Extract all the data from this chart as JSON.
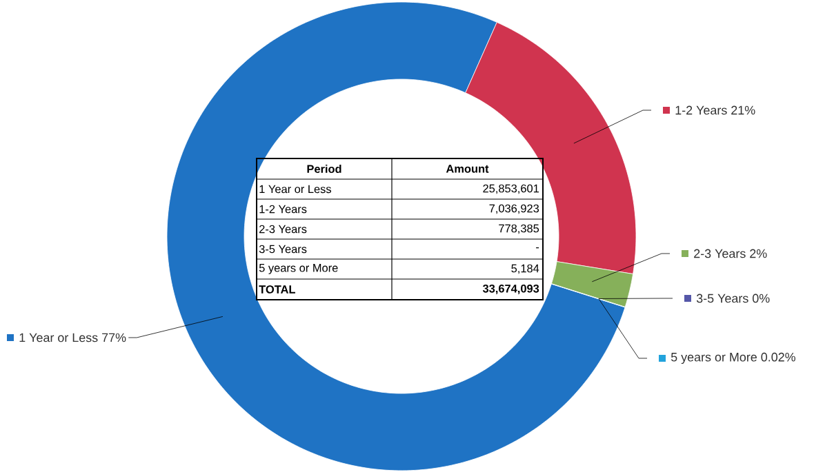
{
  "chart_data": {
    "type": "donut",
    "categories": [
      "1 Year or Less",
      "1-2 Years",
      "2-3 Years",
      "3-5 Years",
      "5 years or More"
    ],
    "values": [
      76.77,
      20.9,
      2.31,
      0,
      0.02
    ],
    "colors": [
      "#1f73c4",
      "#d0344f",
      "#86b05a",
      "#5557a8",
      "#22a3dc"
    ],
    "totals": [
      "33,674,093"
    ],
    "legend": "right",
    "annotations": [
      "Period",
      "Amount",
      "25,853,601",
      "7,036,923",
      "778,385",
      "-",
      "5,184",
      "TOTAL",
      {
        "text": "77%",
        "x": "1 Year or Less"
      },
      {
        "text": "21%",
        "x": "1-2 Years"
      },
      {
        "text": "2%",
        "x": "2-3 Years"
      },
      {
        "text": "0%",
        "x": "3-5 Years"
      },
      {
        "text": "0.02%",
        "x": "5 years or More"
      }
    ]
  }
}
